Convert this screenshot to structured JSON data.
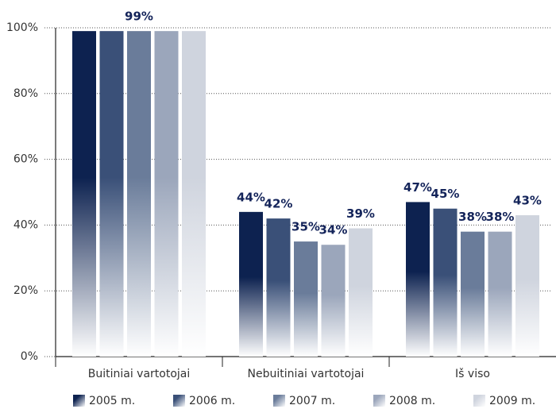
{
  "chart_data": {
    "type": "bar",
    "categories": [
      "Buitiniai vartotojai",
      "Nebuitiniai vartotojai",
      "Iš viso"
    ],
    "series": [
      {
        "name": "2005 m.",
        "color": "#0d2250",
        "values": [
          99,
          44,
          47
        ],
        "value_labels": [
          null,
          "44%",
          "47%"
        ]
      },
      {
        "name": "2006 m.",
        "color": "#3a5078",
        "values": [
          99,
          42,
          45
        ],
        "value_labels": [
          null,
          "42%",
          "45%"
        ]
      },
      {
        "name": "2007 m.",
        "color": "#6a7c9a",
        "values": [
          99,
          35,
          38
        ],
        "value_labels": [
          "99%",
          "35%",
          "38%"
        ]
      },
      {
        "name": "2008 m.",
        "color": "#9ba6bb",
        "values": [
          99,
          34,
          38
        ],
        "value_labels": [
          null,
          "34%",
          "38%"
        ]
      },
      {
        "name": "2009 m.",
        "color": "#cfd4de",
        "values": [
          99,
          39,
          43
        ],
        "value_labels": [
          null,
          "39%",
          "43%"
        ]
      }
    ],
    "ylim": [
      0,
      100
    ],
    "yticks": [
      {
        "value": 0,
        "label": "0%"
      },
      {
        "value": 20,
        "label": "20%"
      },
      {
        "value": 40,
        "label": "40%"
      },
      {
        "value": 60,
        "label": "60%"
      },
      {
        "value": 80,
        "label": "80%"
      },
      {
        "value": 100,
        "label": "100%"
      }
    ],
    "grid": true,
    "legend": "bottom"
  }
}
